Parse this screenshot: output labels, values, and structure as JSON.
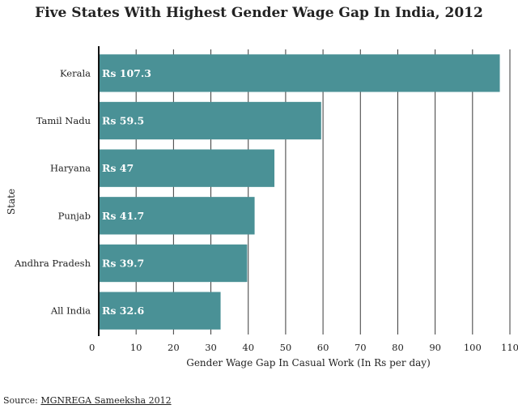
{
  "chart_data": {
    "type": "bar",
    "orientation": "horizontal",
    "title": "Five States With Highest Gender Wage Gap In India, 2012",
    "xlabel": "Gender Wage Gap In Casual Work (In Rs per day)",
    "ylabel": "State",
    "categories": [
      "Kerala",
      "Tamil Nadu",
      "Haryana",
      "Punjab",
      "Andhra Pradesh",
      "All India"
    ],
    "values": [
      107.3,
      59.5,
      47,
      41.7,
      39.7,
      32.6
    ],
    "data_labels": [
      "Rs 107.3",
      "Rs 59.5",
      "Rs 47",
      "Rs 41.7",
      "Rs 39.7",
      "Rs 32.6"
    ],
    "xlim": [
      0,
      110
    ],
    "xticks": [
      0,
      10,
      20,
      30,
      40,
      50,
      60,
      70,
      80,
      90,
      100,
      110
    ],
    "grid": true,
    "bar_color": "#4a9196"
  },
  "source": {
    "prefix": "Source: ",
    "link_text": "MGNREGA Sameeksha 2012"
  }
}
